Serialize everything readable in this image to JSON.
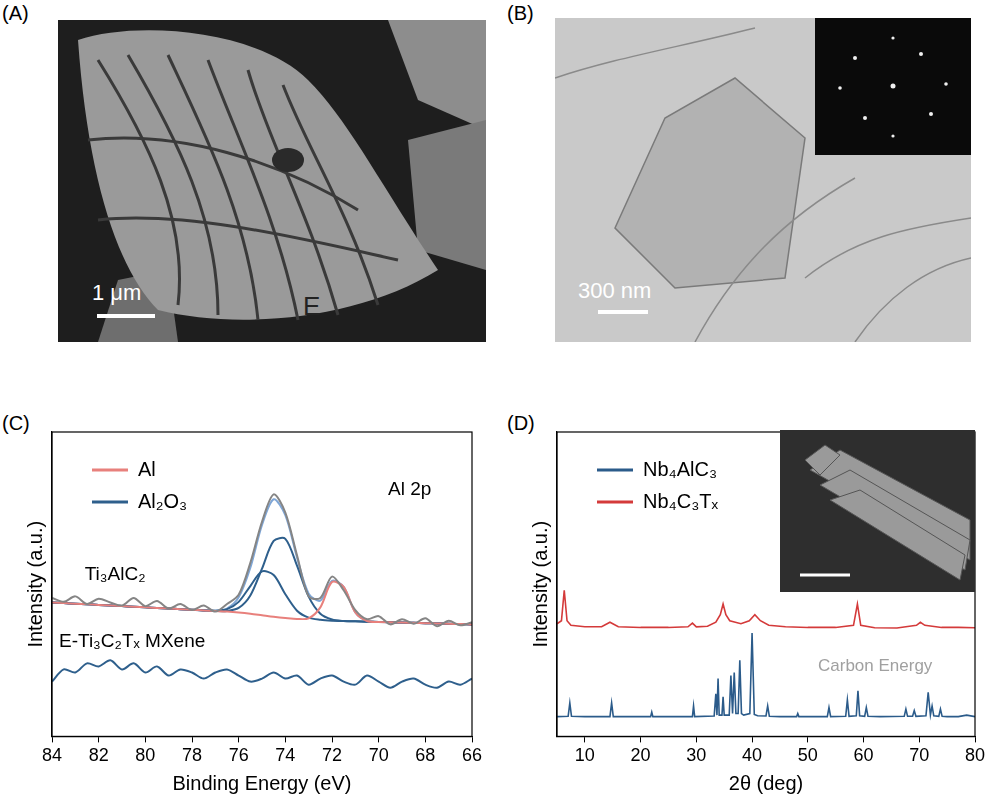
{
  "panels": [
    {
      "label": "(A)",
      "scale_bar": "1 μm",
      "letter": "E"
    },
    {
      "label": "(B)",
      "scale_bar": "300 nm"
    }
  ],
  "chart_data": [
    {
      "panel": "(C)",
      "type": "line",
      "x_label": "Binding Energy (eV)",
      "y_label": "Intensity (a.u.)",
      "x": [
        84,
        83.5,
        83,
        82.5,
        82,
        81.5,
        81,
        80.5,
        80,
        79.5,
        79,
        78.5,
        78,
        77.5,
        77,
        76.5,
        76,
        75.5,
        75,
        74.5,
        74,
        73.5,
        73,
        72.5,
        72,
        71.5,
        71,
        70.5,
        70,
        69.5,
        69,
        68.5,
        68,
        67.5,
        67,
        66.5,
        66
      ],
      "xlim": [
        84,
        66
      ],
      "xticks": [
        84,
        82,
        80,
        78,
        76,
        74,
        72,
        70,
        68,
        66
      ],
      "ylim": [
        0,
        100
      ],
      "yticks": [],
      "tick_labels": "x",
      "grid": false,
      "legend": "upper left",
      "series": [
        {
          "color": "#2e5f8c",
          "values": [
            18,
            22,
            21,
            24,
            23,
            25,
            22,
            24,
            21,
            23,
            20,
            22,
            21,
            19,
            21,
            22,
            20,
            18,
            19,
            21,
            19,
            20,
            17,
            19,
            20,
            18,
            17,
            20,
            18,
            16,
            18,
            19,
            17,
            16,
            18,
            17,
            19
          ]
        },
        {
          "color": "#858585",
          "values": [
            45.5,
            44.2,
            46.0,
            43.5,
            45.2,
            44.0,
            43.0,
            45.5,
            42.8,
            44.5,
            42.0,
            43.5,
            41.5,
            43.0,
            41.0,
            43.5,
            46.5,
            57.0,
            70.5,
            79.5,
            73.5,
            59.5,
            46.0,
            45.5,
            52.5,
            48.0,
            41.5,
            38.5,
            39.5,
            36.8,
            38.5,
            37.0,
            38.8,
            36.2,
            38.0,
            36.5,
            37.5
          ]
        },
        {
          "name": "Al",
          "color": "#e8807c",
          "values": [
            44,
            43.8,
            43.6,
            43.4,
            43.2,
            43,
            42.8,
            42.6,
            42.4,
            42.2,
            42,
            41.8,
            41.6,
            41.4,
            41.2,
            41,
            40.7,
            40.3,
            39.8,
            39.3,
            38.9,
            38.6,
            38.8,
            42.4,
            50.7,
            49.1,
            40.7,
            37.9,
            37.6,
            37.5,
            37.4,
            37.3,
            37.2,
            37.1,
            37,
            36.9,
            36.8
          ]
        },
        {
          "name": "Al₂O₃",
          "color": "#2e5f8c",
          "values": [
            44,
            43.8,
            43.6,
            43.4,
            43.2,
            43,
            42.8,
            42.6,
            42.4,
            42.2,
            42,
            41.8,
            41.6,
            41.4,
            41.3,
            41.8,
            44.2,
            49.4,
            54.2,
            53.0,
            46.7,
            41.3,
            39.0,
            38.3,
            38,
            37.9,
            37.8,
            37.7,
            37.6,
            37.5,
            37.4,
            37.3,
            37.2,
            37.1,
            37,
            36.9,
            36.8
          ]
        },
        {
          "color": "#2e5f8c",
          "values": [
            44,
            43.8,
            43.6,
            43.4,
            43.2,
            43,
            42.8,
            42.6,
            42.4,
            42.2,
            42,
            41.8,
            41.6,
            41.4,
            41.2,
            41.2,
            42.2,
            46.3,
            55.1,
            64.2,
            64.9,
            56.1,
            45.9,
            40.3,
            38.4,
            37.9,
            37.8,
            37.7,
            37.6,
            37.5,
            37.4,
            37.3,
            37.2,
            37.1,
            37,
            36.9,
            36.8
          ]
        },
        {
          "color": "#7fa6d6",
          "values": [
            44,
            43.8,
            43.6,
            43.4,
            43.2,
            43,
            42.8,
            42.6,
            42.4,
            42.2,
            42,
            41.8,
            41.6,
            41.4,
            41.3,
            42.0,
            45.7,
            55.4,
            69.5,
            77.9,
            72.7,
            58.8,
            46.9,
            44.6,
            51.1,
            49.1,
            40.7,
            37.9,
            37.6,
            37.5,
            37.4,
            37.3,
            37.2,
            37.1,
            37,
            36.9,
            36.8
          ]
        }
      ],
      "annotations": [
        {
          "text": "Al 2p",
          "x": 69.6,
          "y": 81
        },
        {
          "text": "Ti₃AlC₂",
          "x": 82.6,
          "y": 53
        },
        {
          "text": "E-Ti₃C₂Tₓ MXene",
          "x": 83.7,
          "y": 31
        }
      ]
    },
    {
      "panel": "(D)",
      "type": "line",
      "x_label": "2θ (deg)",
      "y_label": "Intensity (a.u.)",
      "xlim": [
        5,
        80
      ],
      "xticks": [
        10,
        20,
        30,
        40,
        50,
        60,
        70,
        80
      ],
      "ylim": [
        0,
        100
      ],
      "yticks": [],
      "tick_labels": "x",
      "grid": false,
      "legend": "upper left",
      "series": [
        {
          "name": "Nb₄AlC₃",
          "color": "#2b5b8a",
          "x": [
            5,
            7,
            7.3,
            7.6,
            10,
            14.5,
            14.8,
            15.1,
            21.8,
            22,
            22.2,
            29.3,
            29.5,
            29.7,
            33.2,
            33.5,
            33.7,
            33.9,
            34.1,
            34.6,
            34.8,
            35,
            35.9,
            36.2,
            36.5,
            36.8,
            37.1,
            37.5,
            37.8,
            38.1,
            38.5,
            39.6,
            40,
            40.4,
            41,
            42.5,
            42.8,
            43.1,
            45,
            48,
            48.2,
            48.4,
            53.5,
            53.8,
            54.1,
            56.8,
            57.1,
            57.4,
            58.7,
            59,
            59.3,
            60.2,
            60.5,
            60.8,
            63,
            67.3,
            67.6,
            67.9,
            68.8,
            69.1,
            69.4,
            71.2,
            71.6,
            72,
            72.3,
            72.6,
            73.5,
            73.8,
            74.1,
            75,
            77,
            78.5,
            80
          ],
          "values": [
            6.5,
            6.6,
            11,
            6.6,
            6.5,
            6.5,
            11,
            6.5,
            6.5,
            8,
            6.5,
            6.5,
            10,
            6.5,
            6.7,
            14,
            7,
            19,
            7,
            7,
            13,
            7,
            7,
            20,
            7.5,
            21,
            7.5,
            7.5,
            25,
            7.5,
            7,
            7.5,
            34,
            7.2,
            6.8,
            6.7,
            10,
            6.6,
            6.5,
            6.5,
            7.5,
            6.5,
            6.5,
            9.5,
            6.5,
            6.6,
            12,
            6.6,
            6.8,
            15,
            6.8,
            6.6,
            9.5,
            6.6,
            6.5,
            6.6,
            9,
            6.6,
            6.6,
            8.5,
            6.6,
            6.8,
            14.5,
            7,
            10,
            6.8,
            6.6,
            9,
            6.6,
            6.5,
            6.5,
            7,
            6.5
          ]
        },
        {
          "name": "Nb₄C₃Tₓ",
          "color": "#d43a3a",
          "x": [
            5,
            5.8,
            6.3,
            6.8,
            7.5,
            10,
            13,
            14.5,
            16,
            20,
            25,
            28.5,
            29.3,
            30,
            32,
            33.5,
            34.3,
            34.8,
            35.3,
            36,
            37,
            38,
            39.5,
            40.5,
            41.5,
            43,
            46,
            50,
            55,
            58.2,
            58.9,
            59.5,
            62,
            66,
            69.5,
            70.2,
            71,
            74,
            77,
            80
          ],
          "values": [
            37,
            38,
            48,
            38,
            36.5,
            36,
            36,
            37.5,
            36,
            35.8,
            35.8,
            36,
            37.2,
            36,
            36.2,
            37.5,
            40,
            43.5,
            40,
            38,
            37.5,
            37,
            38,
            40,
            38,
            36.5,
            36,
            35.8,
            35.8,
            36.5,
            43.5,
            36.5,
            35.7,
            35.6,
            36.5,
            37.5,
            36.5,
            35.8,
            35.8,
            35.7
          ]
        }
      ],
      "watermark": "Carbon Energy"
    }
  ]
}
